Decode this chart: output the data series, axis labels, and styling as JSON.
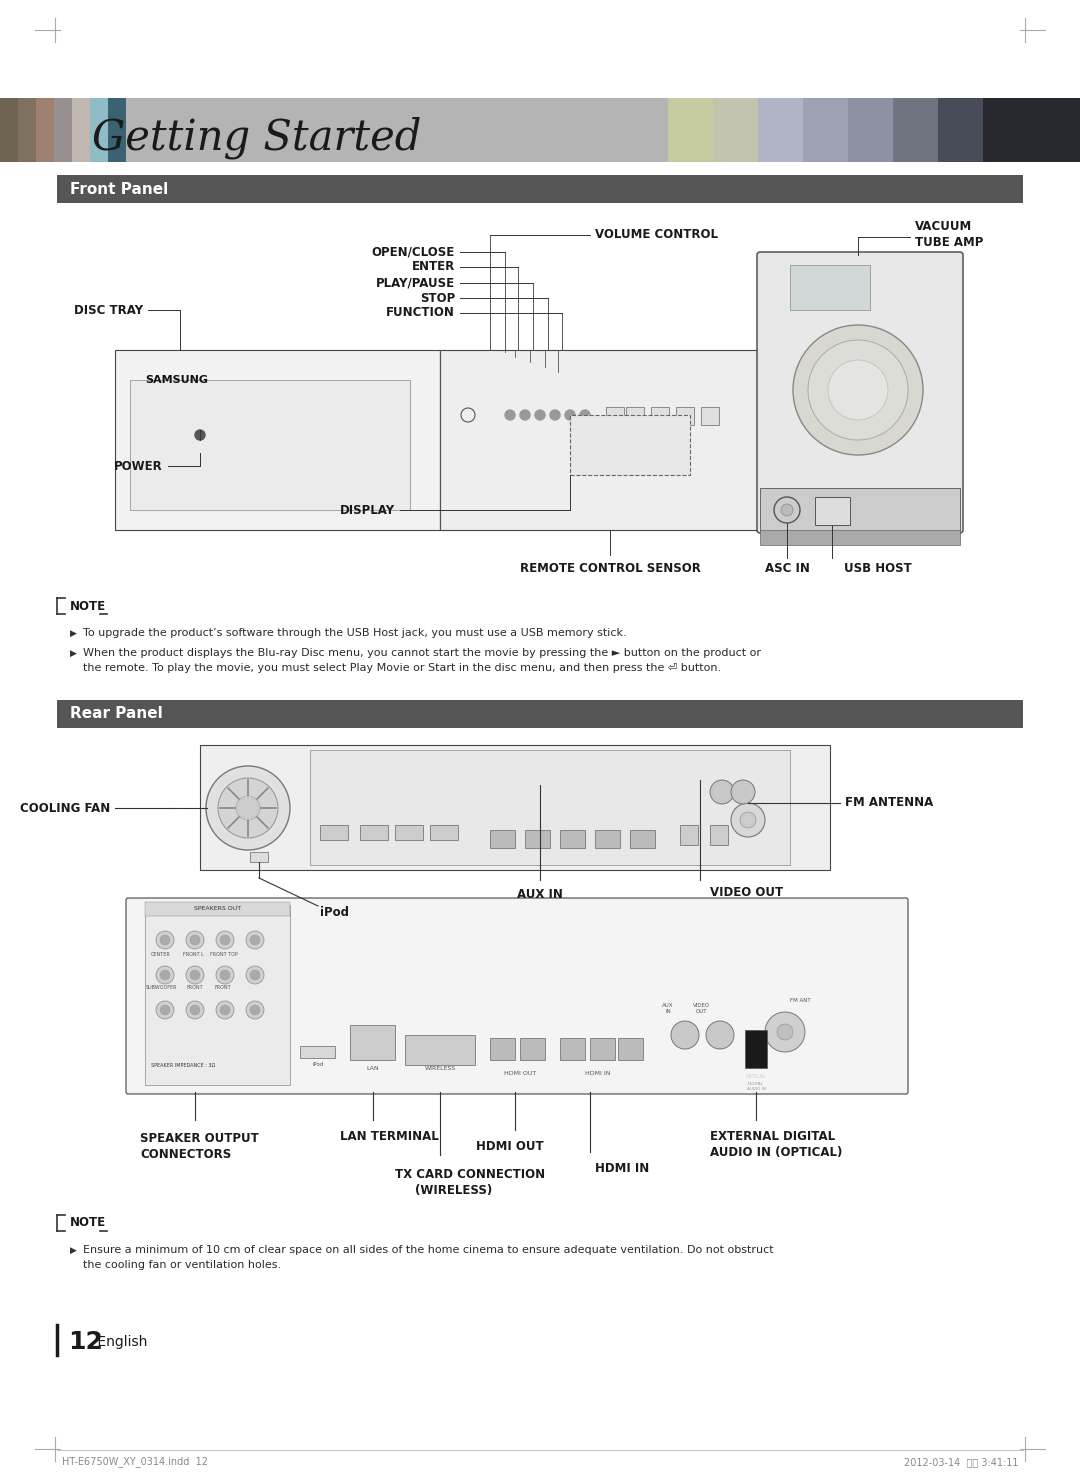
{
  "page_bg": "#ffffff",
  "title": "Getting Started",
  "header_bg": "#b8b8b8",
  "section_bg": "#555555",
  "section_text_color": "#ffffff",
  "front_panel_title": "Front Panel",
  "rear_panel_title": "Rear Panel",
  "note1_lines": [
    "To upgrade the product’s software through the USB Host jack, you must use a USB memory stick.",
    "When the product displays the Blu-ray Disc menu, you cannot start the movie by pressing the ► button on the product or",
    "the remote. To play the movie, you must select Play Movie or Start in the disc menu, and then press the ⏎ button."
  ],
  "note2_lines": [
    "Ensure a minimum of 10 cm of clear space on all sides of the home cinema to ensure adequate ventilation. Do not obstruct",
    "the cooling fan or ventilation holes."
  ],
  "footer_left": "HT-E6750W_XY_0314.indd  12",
  "footer_right": "2012-03-14  오후 3:41:11",
  "page_number": "12",
  "body_text_color": "#333333",
  "line_color": "#555555",
  "diagram_line_color": "#333333",
  "header_color_blocks_left": [
    "#7a6e5a",
    "#6e6258",
    "#8c7060",
    "#907878",
    "#b0a898",
    "#9ab8c0",
    "#3a6070"
  ],
  "header_color_blocks_mid": [
    "#c8c8a0",
    "#c8c8b8",
    "#b8bcc8",
    "#a8aab8",
    "#989aaa",
    "#686878",
    "#404050"
  ],
  "header_color_block_dark": "#252525"
}
